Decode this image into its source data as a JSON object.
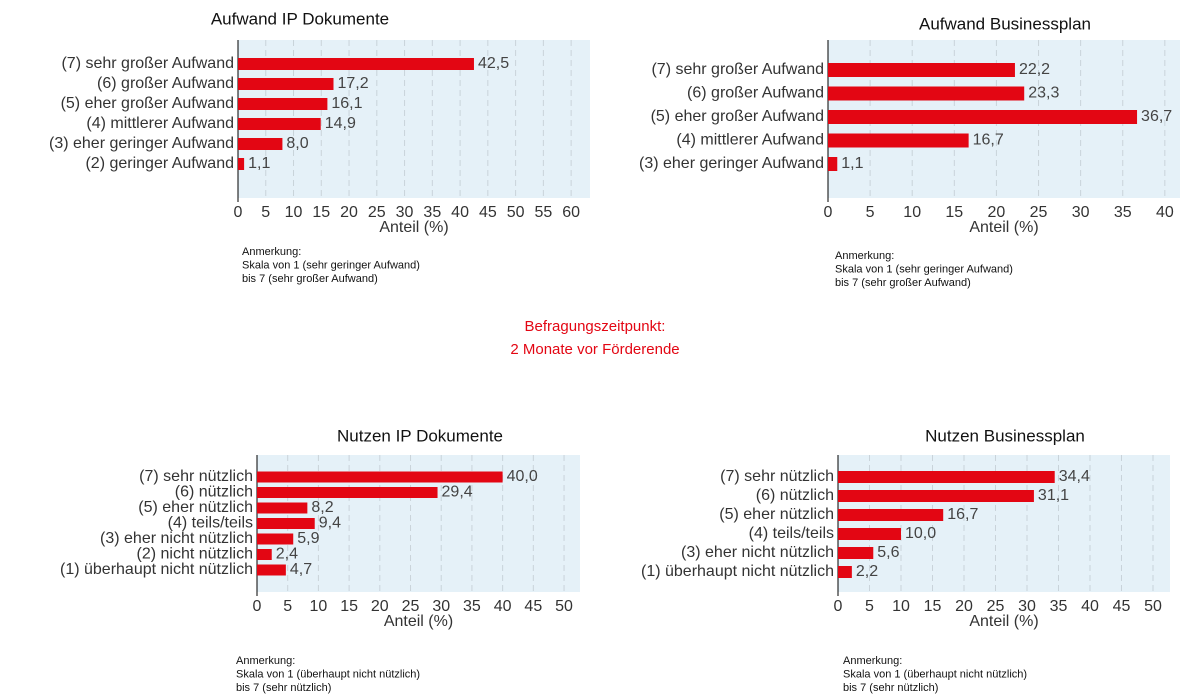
{
  "annotation": [
    "Befragungszeitpunkt:",
    "2 Monate vor Förderende"
  ],
  "chart_data": [
    {
      "type": "bar",
      "orientation": "horizontal",
      "title": "Aufwand IP Dokumente",
      "xlabel": "Anteil (%)",
      "categories": [
        "(7) sehr großer Aufwand",
        "(6) großer Aufwand",
        "(5) eher großer Aufwand",
        "(4) mittlerer Aufwand",
        "(3) eher geringer Aufwand",
        "(2) geringer Aufwand"
      ],
      "values": [
        42.5,
        17.2,
        16.1,
        14.9,
        8.0,
        1.1
      ],
      "value_labels": [
        "42,5",
        "17,2",
        "16,1",
        "14,9",
        "8,0",
        "1,1"
      ],
      "color": "#e30613",
      "xlim": [
        0,
        63.4
      ],
      "xticks": [
        0,
        5,
        10,
        15,
        20,
        25,
        30,
        35,
        40,
        45,
        50,
        55,
        60
      ],
      "grid": true,
      "note": [
        "Anmerkung:",
        "Skala von 1 (sehr geringer Aufwand)",
        "bis 7 (sehr großer Aufwand)"
      ]
    },
    {
      "type": "bar",
      "orientation": "horizontal",
      "title": "Aufwand Businessplan",
      "xlabel": "Anteil (%)",
      "categories": [
        "(7) sehr großer Aufwand",
        "(6) großer Aufwand",
        "(5) eher großer Aufwand",
        "(4) mittlerer Aufwand",
        "(3) eher geringer Aufwand"
      ],
      "values": [
        22.2,
        23.3,
        36.7,
        16.7,
        1.1
      ],
      "value_labels": [
        "22,2",
        "23,3",
        "36,7",
        "16,7",
        "1,1"
      ],
      "color": "#e30613",
      "xlim": [
        0,
        41.8
      ],
      "xticks": [
        0,
        5,
        10,
        15,
        20,
        25,
        30,
        35,
        40
      ],
      "grid": true,
      "note": [
        "Anmerkung:",
        "Skala von 1 (sehr geringer Aufwand)",
        "bis 7 (sehr großer Aufwand)"
      ]
    },
    {
      "type": "bar",
      "orientation": "horizontal",
      "title": "Nutzen IP Dokumente",
      "xlabel": "Anteil (%)",
      "categories": [
        "(7) sehr nützlich",
        "(6) nützlich",
        "(5) eher nützlich",
        "(4) teils/teils",
        "(3) eher nicht nützlich",
        "(2) nicht nützlich",
        "(1) überhaupt nicht nützlich"
      ],
      "values": [
        40.0,
        29.4,
        8.2,
        9.4,
        5.9,
        2.4,
        4.7
      ],
      "value_labels": [
        "40,0",
        "29,4",
        "8,2",
        "9,4",
        "5,9",
        "2,4",
        "4,7"
      ],
      "color": "#e30613",
      "xlim": [
        0,
        52.6
      ],
      "xticks": [
        0,
        5,
        10,
        15,
        20,
        25,
        30,
        35,
        40,
        45,
        50
      ],
      "grid": true,
      "note": [
        "Anmerkung:",
        "Skala von 1 (überhaupt nicht nützlich)",
        "bis 7 (sehr nützlich)"
      ]
    },
    {
      "type": "bar",
      "orientation": "horizontal",
      "title": "Nutzen Businessplan",
      "xlabel": "Anteil (%)",
      "categories": [
        "(7) sehr nützlich",
        "(6) nützlich",
        "(5) eher nützlich",
        "(4) teils/teils",
        "(3) eher nicht nützlich",
        "(1) überhaupt nicht nützlich"
      ],
      "values": [
        34.4,
        31.1,
        16.7,
        10.0,
        5.6,
        2.2
      ],
      "value_labels": [
        "34,4",
        "31,1",
        "16,7",
        "10,0",
        "5,6",
        "2,2"
      ],
      "color": "#e30613",
      "xlim": [
        0,
        52.7
      ],
      "xticks": [
        0,
        5,
        10,
        15,
        20,
        25,
        30,
        35,
        40,
        45,
        50
      ],
      "grid": true,
      "note": [
        "Anmerkung:",
        "Skala von 1 (überhaupt nicht nützlich)",
        "bis 7 (sehr nützlich)"
      ]
    }
  ]
}
